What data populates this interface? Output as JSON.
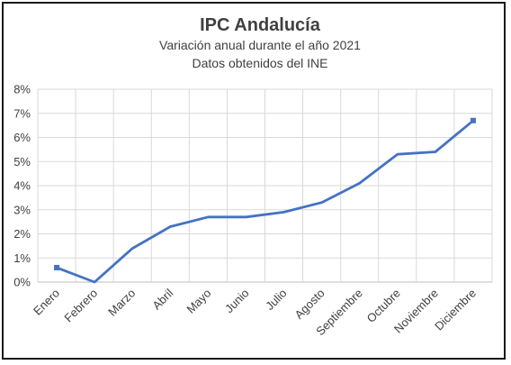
{
  "chart_data": {
    "type": "line",
    "title": "IPC Andalucía",
    "subtitle": [
      "Variación anual durante el año 2021",
      "Datos obtenidos del INE"
    ],
    "categories": [
      "Enero",
      "Febrero",
      "Marzo",
      "Abril",
      "Mayo",
      "Junio",
      "Julio",
      "Agosto",
      "Septiembre",
      "Octubre",
      "Noviembre",
      "Diciembre"
    ],
    "values": [
      0.6,
      0.0,
      1.4,
      2.3,
      2.7,
      2.7,
      2.9,
      3.3,
      4.1,
      5.3,
      5.4,
      6.7
    ],
    "y_ticks": [
      "0%",
      "1%",
      "2%",
      "3%",
      "4%",
      "5%",
      "6%",
      "7%",
      "8%"
    ],
    "ylim": [
      0,
      8
    ],
    "grid": true,
    "legend": "none",
    "line_color": "#4472c4",
    "endpoint_markers": true
  }
}
